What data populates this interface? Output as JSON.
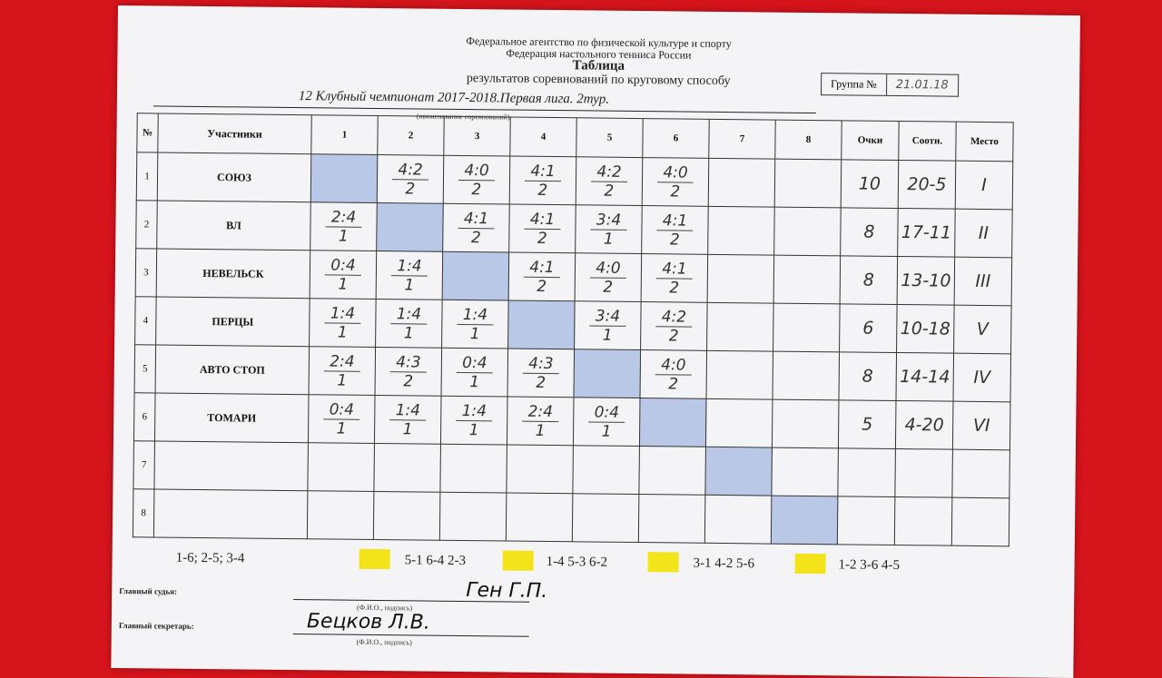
{
  "header": {
    "agency": "Федеральное агентство по физической культуре и спорту",
    "federation": "Федерация настольного тенниса России",
    "title": "Таблица",
    "subtitle": "результатов соревнований по круговому способу",
    "competition": "12 Клубный чемпионат 2017-2018.Первая лига. 2тур.",
    "competition_note": "(наименование соревнований)",
    "group_label": "Группа №",
    "group_value": "21.01.18"
  },
  "table": {
    "headers": {
      "num": "№",
      "participants": "Участники",
      "cols": [
        "1",
        "2",
        "3",
        "4",
        "5",
        "6",
        "7",
        "8"
      ],
      "points": "Очки",
      "ratio": "Соотн.",
      "place": "Место"
    },
    "rows": [
      {
        "num": "1",
        "name": "СОЮЗ",
        "scores": [
          null,
          [
            "4:2",
            "2"
          ],
          [
            "4:0",
            "2"
          ],
          [
            "4:1",
            "2"
          ],
          [
            "4:2",
            "2"
          ],
          [
            "4:0",
            "2"
          ],
          null,
          null
        ],
        "points": "10",
        "ratio": "20-5",
        "place": "I"
      },
      {
        "num": "2",
        "name": "ВЛ",
        "scores": [
          [
            "2:4",
            "1"
          ],
          null,
          [
            "4:1",
            "2"
          ],
          [
            "4:1",
            "2"
          ],
          [
            "3:4",
            "1"
          ],
          [
            "4:1",
            "2"
          ],
          null,
          null
        ],
        "points": "8",
        "ratio": "17-11",
        "place": "II"
      },
      {
        "num": "3",
        "name": "НЕВЕЛЬСК",
        "scores": [
          [
            "0:4",
            "1"
          ],
          [
            "1:4",
            "1"
          ],
          null,
          [
            "4:1",
            "2"
          ],
          [
            "4:0",
            "2"
          ],
          [
            "4:1",
            "2"
          ],
          null,
          null
        ],
        "points": "8",
        "ratio": "13-10",
        "place": "III"
      },
      {
        "num": "4",
        "name": "ПЕРЦЫ",
        "scores": [
          [
            "1:4",
            "1"
          ],
          [
            "1:4",
            "1"
          ],
          [
            "1:4",
            "1"
          ],
          null,
          [
            "3:4",
            "1"
          ],
          [
            "4:2",
            "2"
          ],
          null,
          null
        ],
        "points": "6",
        "ratio": "10-18",
        "place": "V"
      },
      {
        "num": "5",
        "name": "АВТО СТОП",
        "scores": [
          [
            "2:4",
            "1"
          ],
          [
            "4:3",
            "2"
          ],
          [
            "0:4",
            "1"
          ],
          [
            "4:3",
            "2"
          ],
          null,
          [
            "4:0",
            "2"
          ],
          null,
          null
        ],
        "points": "8",
        "ratio": "14-14",
        "place": "IV"
      },
      {
        "num": "6",
        "name": "ТОМАРИ",
        "scores": [
          [
            "0:4",
            "1"
          ],
          [
            "1:4",
            "1"
          ],
          [
            "1:4",
            "1"
          ],
          [
            "2:4",
            "1"
          ],
          [
            "0:4",
            "1"
          ],
          null,
          null,
          null
        ],
        "points": "5",
        "ratio": "4-20",
        "place": "VI"
      },
      {
        "num": "7",
        "name": "",
        "scores": [
          null,
          null,
          null,
          null,
          null,
          null,
          null,
          null
        ],
        "points": "",
        "ratio": "",
        "place": ""
      },
      {
        "num": "8",
        "name": "",
        "scores": [
          null,
          null,
          null,
          null,
          null,
          null,
          null,
          null
        ],
        "points": "",
        "ratio": "",
        "place": ""
      }
    ]
  },
  "schedule": [
    "1-6; 2-5; 3-4",
    "5-1 6-4 2-3",
    "1-4 5-3 6-2",
    "3-1 4-2 5-6",
    "1-2 3-6 4-5"
  ],
  "signatures": {
    "judge_label": "Главный судья:",
    "judge_name": "Ген Г.П.",
    "secretary_label": "Главный секретарь:",
    "secretary_name": "Бецков Л.В.",
    "fio_note": "(Ф.И.О., подпись)"
  },
  "colors": {
    "background": "#d5141c",
    "self_cell": "#b9c8e6",
    "marker": "#f3e31b"
  }
}
